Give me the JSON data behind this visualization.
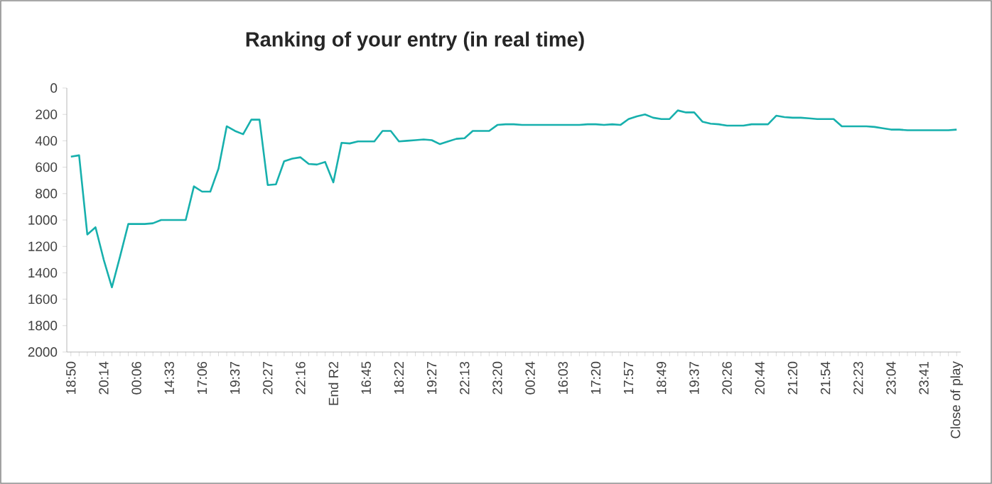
{
  "chart_data": {
    "type": "line",
    "title": "Ranking of your entry (in real time)",
    "categories": [
      "18:50",
      null,
      null,
      null,
      "20:14",
      null,
      null,
      null,
      "00:06",
      null,
      null,
      null,
      "14:33",
      null,
      null,
      null,
      "17:06",
      null,
      null,
      null,
      "19:37",
      null,
      null,
      null,
      "20:27",
      null,
      null,
      null,
      "22:16",
      null,
      null,
      null,
      "End R2",
      null,
      null,
      null,
      "16:45",
      null,
      null,
      null,
      "18:22",
      null,
      null,
      null,
      "19:27",
      null,
      null,
      null,
      "22:13",
      null,
      null,
      null,
      "23:20",
      null,
      null,
      null,
      "00:24",
      null,
      null,
      null,
      "16:03",
      null,
      null,
      null,
      "17:20",
      null,
      null,
      null,
      "17:57",
      null,
      null,
      null,
      "18:49",
      null,
      null,
      null,
      "19:37",
      null,
      null,
      null,
      "20:26",
      null,
      null,
      null,
      "20:44",
      null,
      null,
      null,
      "21:20",
      null,
      null,
      null,
      "21:54",
      null,
      null,
      null,
      "22:23",
      null,
      null,
      null,
      "23:04",
      null,
      null,
      null,
      "23:41",
      null,
      null,
      null,
      "Close of play"
    ],
    "values": [
      520,
      510,
      1110,
      1055,
      1300,
      1510,
      1275,
      1030,
      1030,
      1030,
      1025,
      1000,
      1000,
      1000,
      1000,
      745,
      785,
      785,
      610,
      290,
      325,
      350,
      240,
      240,
      735,
      730,
      555,
      535,
      525,
      575,
      580,
      560,
      715,
      415,
      420,
      405,
      405,
      405,
      325,
      325,
      405,
      400,
      395,
      390,
      395,
      425,
      405,
      385,
      380,
      325,
      325,
      325,
      280,
      275,
      275,
      280,
      280,
      280,
      280,
      280,
      280,
      280,
      280,
      275,
      275,
      280,
      275,
      280,
      235,
      215,
      200,
      225,
      235,
      235,
      170,
      185,
      185,
      255,
      270,
      275,
      285,
      285,
      285,
      275,
      275,
      275,
      210,
      220,
      225,
      225,
      230,
      235,
      235,
      235,
      290,
      290,
      290,
      290,
      295,
      305,
      315,
      315,
      320,
      320,
      320,
      320,
      320,
      320,
      315
    ],
    "color": "#17b0ad",
    "ylim": [
      2000,
      0
    ],
    "yticks": [
      0,
      200,
      400,
      600,
      800,
      1000,
      1200,
      1400,
      1600,
      1800,
      2000
    ]
  }
}
